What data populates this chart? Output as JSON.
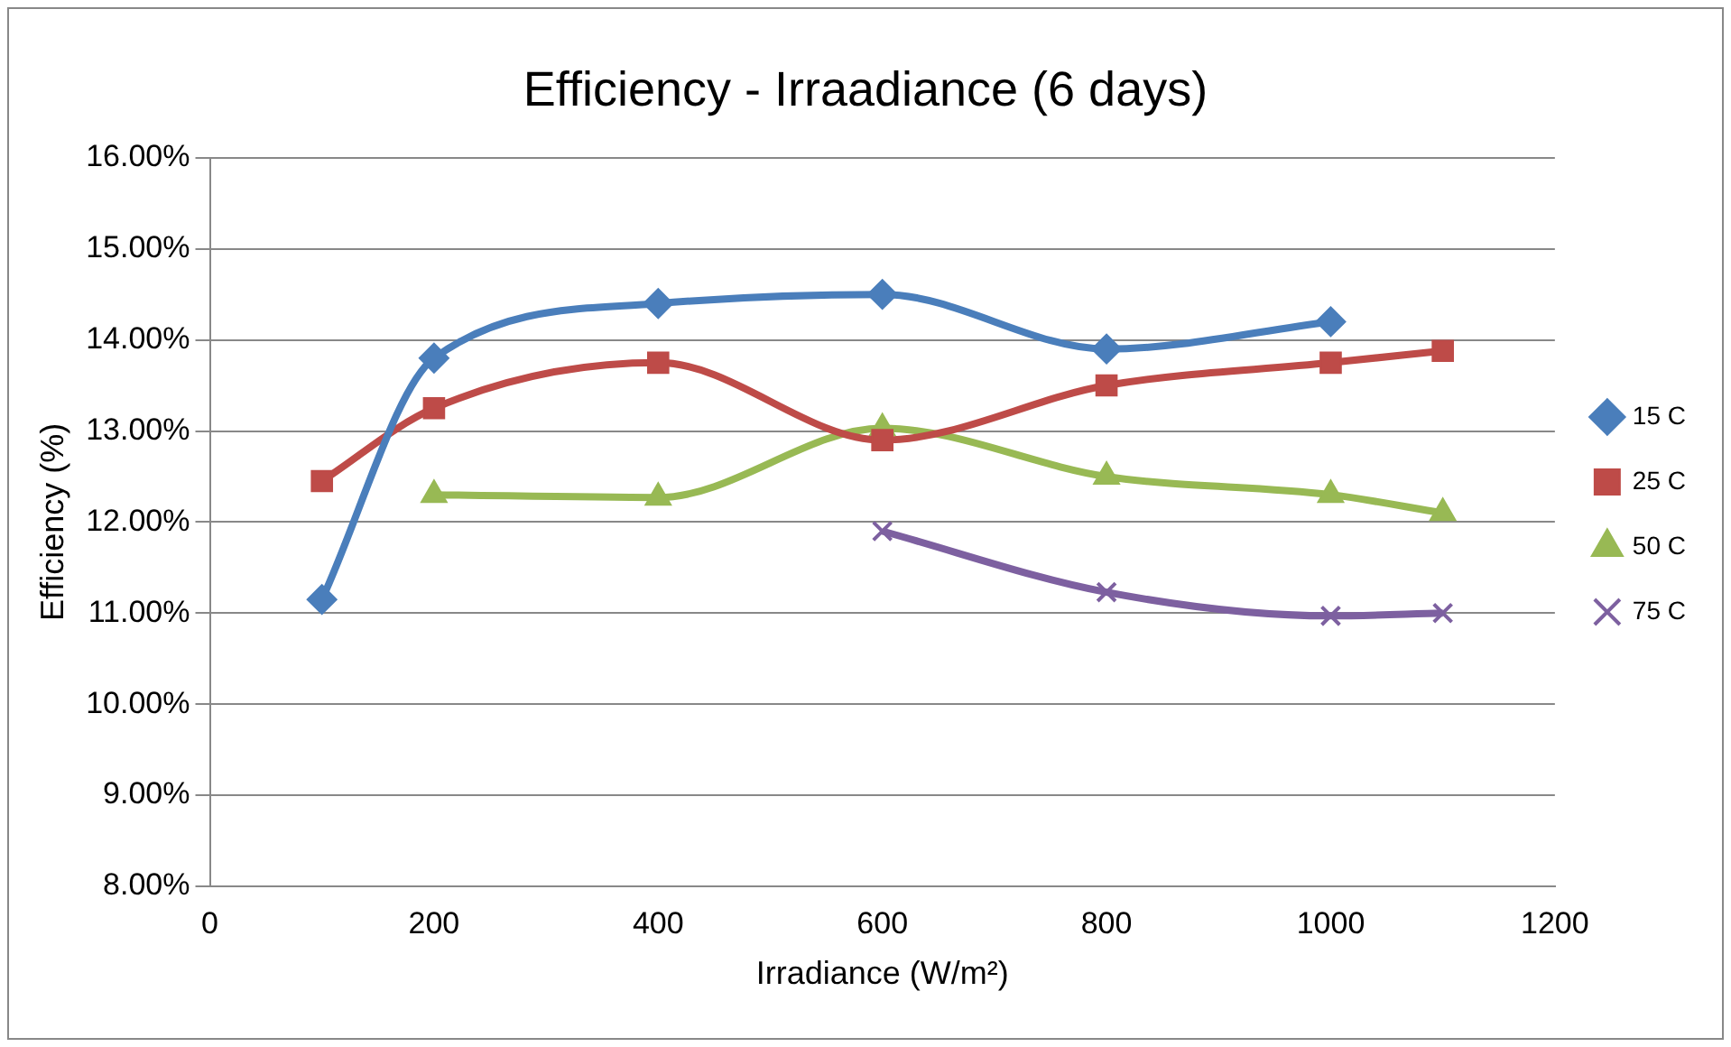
{
  "chart_data": {
    "type": "line",
    "title": "Efficiency - Irraadiance (6 days)",
    "xlabel": "Irradiance (W/m²)",
    "ylabel": "Efficiency (%)",
    "x": [
      100,
      200,
      400,
      600,
      800,
      1000,
      1100
    ],
    "series": [
      {
        "name": "15 C",
        "color": "#4a7ebb",
        "marker": "diamond",
        "values": [
          11.15,
          13.8,
          14.4,
          14.5,
          13.9,
          14.2,
          null
        ]
      },
      {
        "name": "25 C",
        "color": "#be4b48",
        "marker": "square",
        "values": [
          12.45,
          13.25,
          13.75,
          12.9,
          13.5,
          13.75,
          13.88
        ]
      },
      {
        "name": "50 C",
        "color": "#98b954",
        "marker": "triangle",
        "values": [
          null,
          12.3,
          12.27,
          13.03,
          12.5,
          12.3,
          12.1
        ]
      },
      {
        "name": "75 C",
        "color": "#7d60a0",
        "marker": "cross",
        "values": [
          null,
          null,
          null,
          11.9,
          11.23,
          10.97,
          11.0
        ]
      }
    ],
    "xlim": [
      0,
      1200
    ],
    "xticks": [
      0,
      200,
      400,
      600,
      800,
      1000,
      1200
    ],
    "ylim": [
      8,
      16
    ],
    "yticks": [
      {
        "value": 8,
        "label": "8.00%"
      },
      {
        "value": 9,
        "label": "9.00%"
      },
      {
        "value": 10,
        "label": "10.00%"
      },
      {
        "value": 11,
        "label": "11.00%"
      },
      {
        "value": 12,
        "label": "12.00%"
      },
      {
        "value": 13,
        "label": "13.00%"
      },
      {
        "value": 14,
        "label": "14.00%"
      },
      {
        "value": 15,
        "label": "15.00%"
      },
      {
        "value": 16,
        "label": "16.00%"
      }
    ],
    "grid": "y",
    "legend": "right",
    "line_style": "solid"
  }
}
